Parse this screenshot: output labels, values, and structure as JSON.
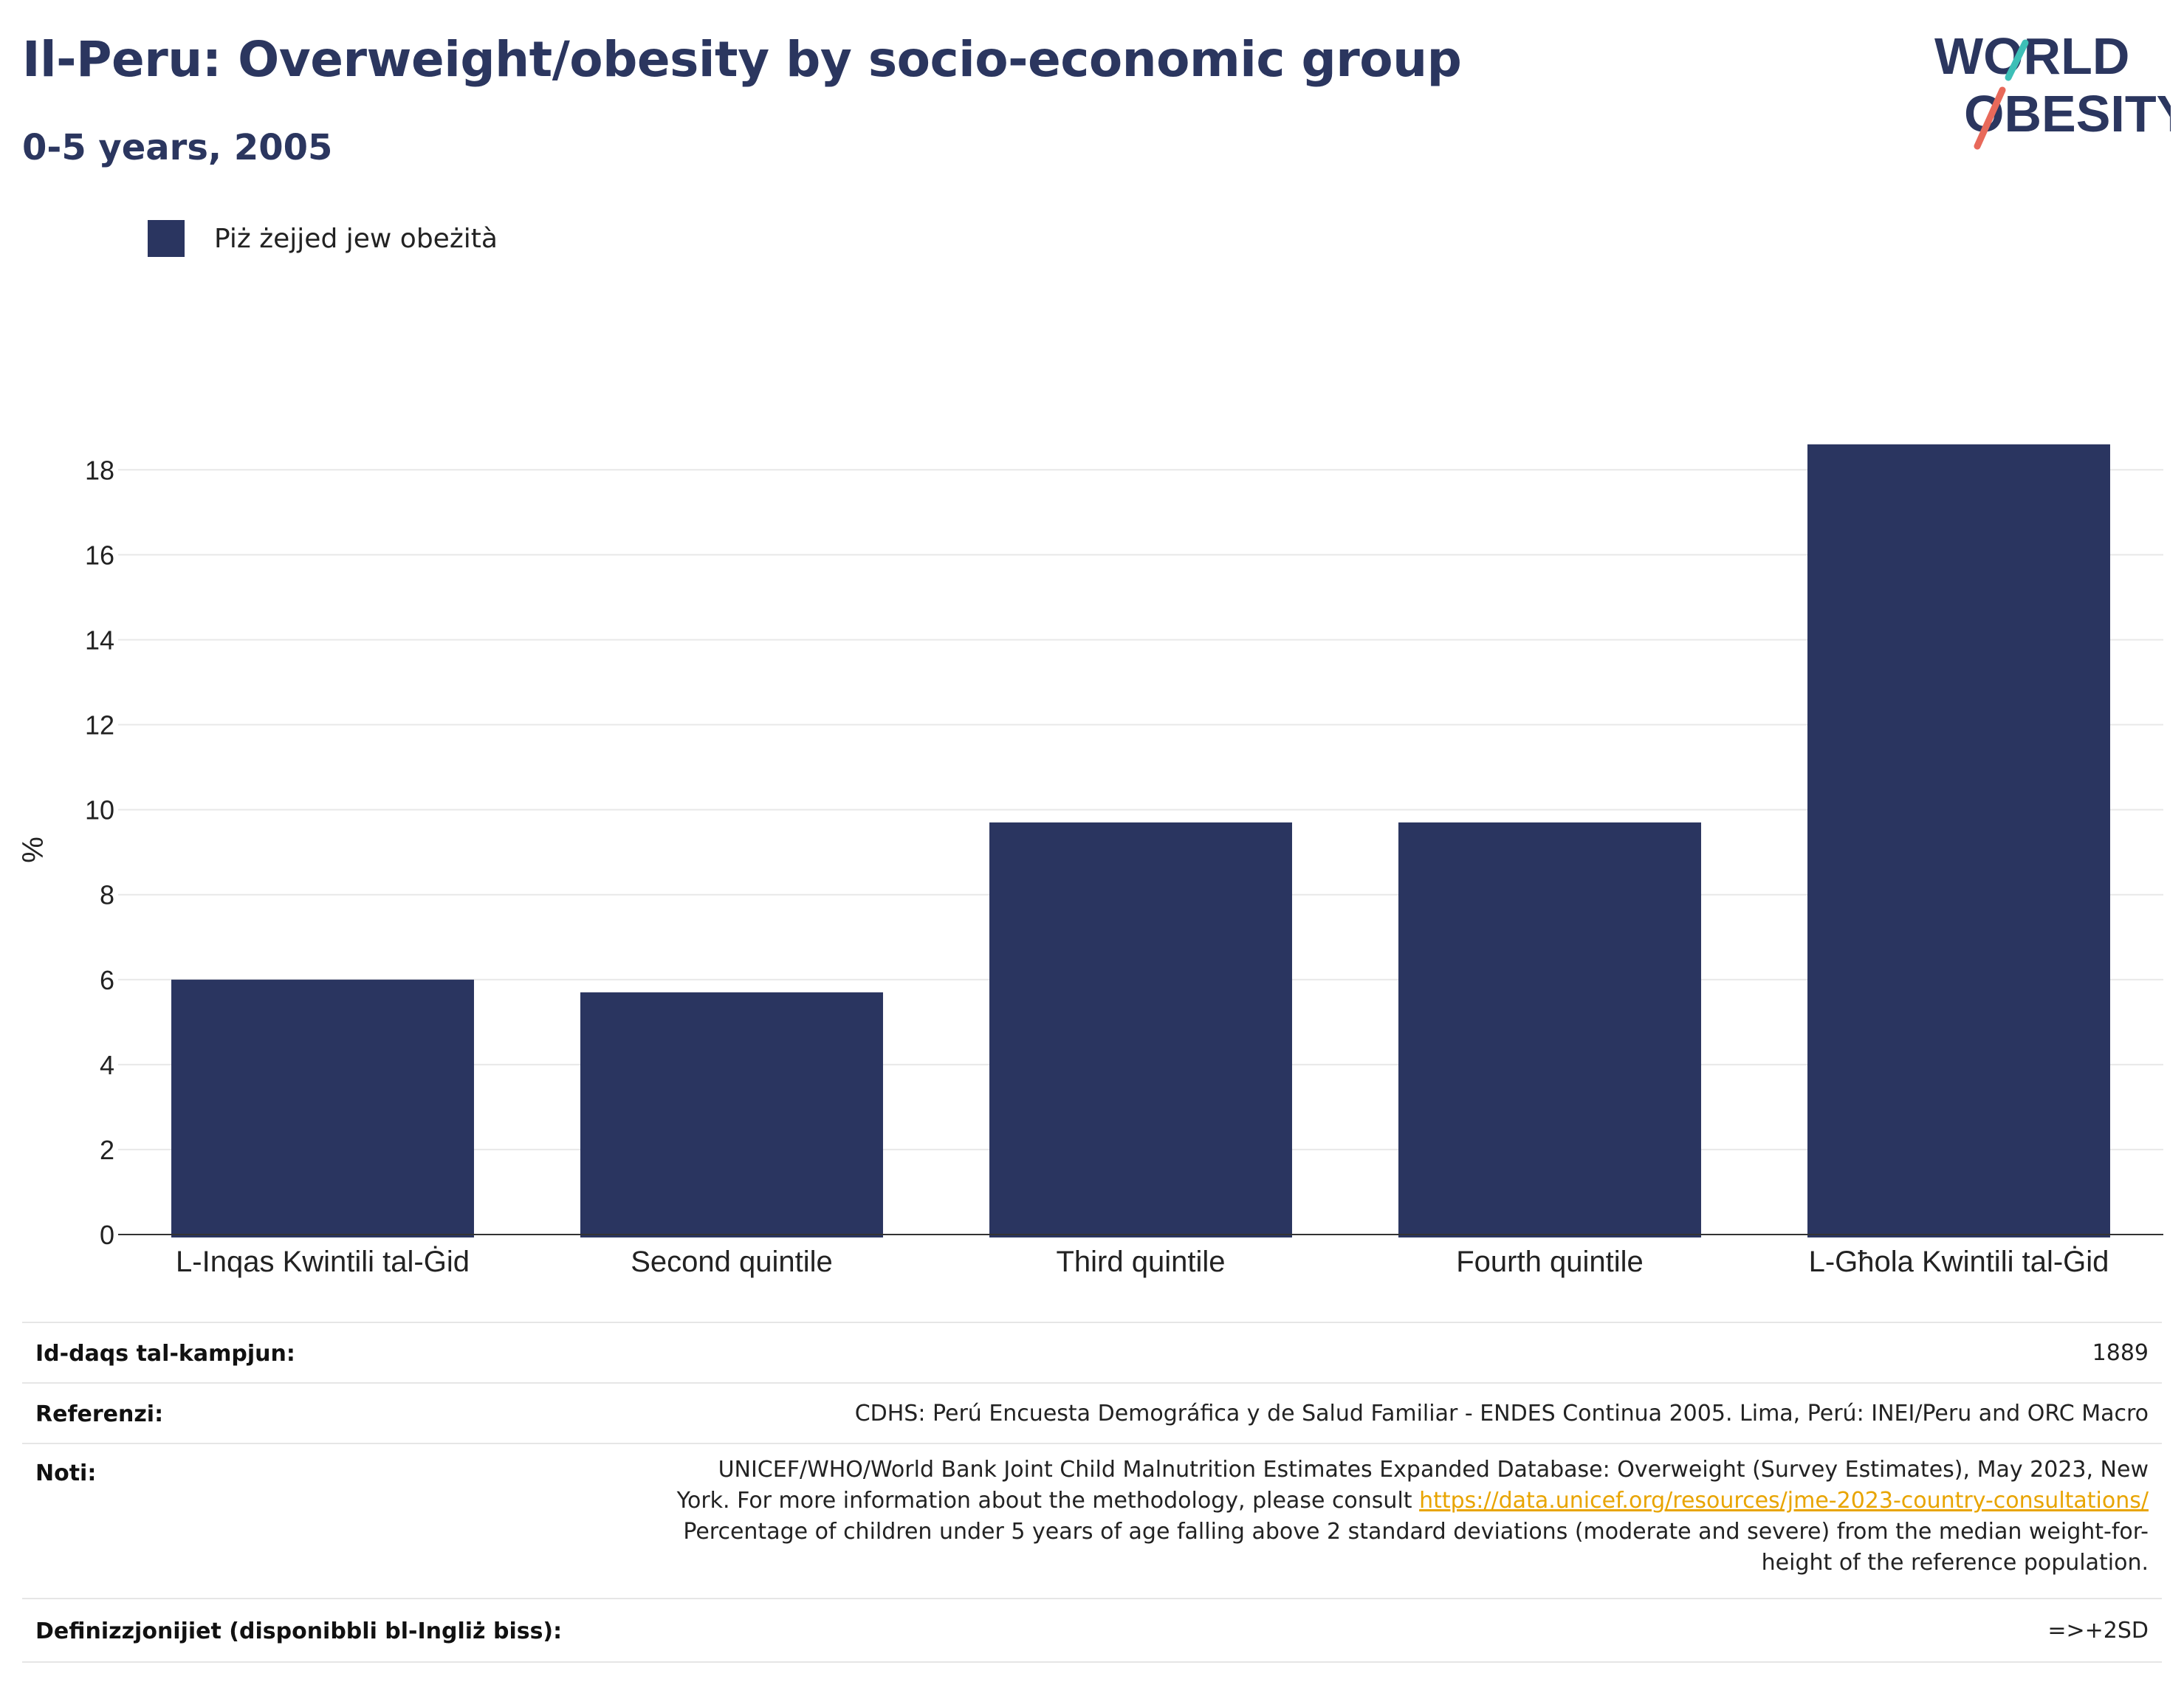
{
  "header": {
    "title": "Il-Peru: Overweight/obesity by socio-economic group",
    "subtitle": "0-5 years, 2005"
  },
  "logo": {
    "line1": "WORLD",
    "line2": "OBESITY",
    "colors": {
      "text": "#2b365f",
      "slash_top": "#3dbfb7",
      "slash_bottom": "#e8695a"
    }
  },
  "legend": {
    "label": "Piż żejjed jew obeżità",
    "color": "#2a3560"
  },
  "chart_data": {
    "type": "bar",
    "categories": [
      "L-Inqas Kwintili tal-Ġid",
      "Second quintile",
      "Third quintile",
      "Fourth quintile",
      "L-Għola Kwintili tal-Ġid"
    ],
    "series": [
      {
        "name": "Piż żejjed jew obeżità",
        "values": [
          6.0,
          5.7,
          9.7,
          9.7,
          18.6
        ]
      }
    ],
    "ylabel": "%",
    "ylim": [
      0,
      19.5
    ],
    "yticks": [
      0,
      2,
      4,
      6,
      8,
      10,
      12,
      14,
      16,
      18
    ],
    "grid": true,
    "legend_position": "top-left",
    "bar_color": "#2a3560"
  },
  "info": {
    "sample_size": {
      "label": "Id-daqs tal-kampjun:",
      "value": "1889"
    },
    "references": {
      "label": "Referenzi:",
      "value": "CDHS: Perú Encuesta Demográfica y de Salud Familiar - ENDES Continua 2005. Lima, Perú: INEI/Peru and ORC Macro"
    },
    "notes": {
      "label": "Noti:",
      "line1": "UNICEF/WHO/World Bank Joint Child Malnutrition Estimates Expanded Database: Overweight (Survey Estimates), May 2023, New",
      "line2_prefix": "York. For more information about the methodology, please consult ",
      "link": "https://data.unicef.org/resources/jme-2023-country-consultations/",
      "line3": "Percentage of children under 5 years of age falling above 2 standard deviations (moderate and severe) from the median weight-for-",
      "line4": "height of the reference population."
    },
    "definitions": {
      "label": "Definizzjonijiet (disponibbli bl-Ingliż biss):",
      "value": "=>+2SD"
    }
  }
}
